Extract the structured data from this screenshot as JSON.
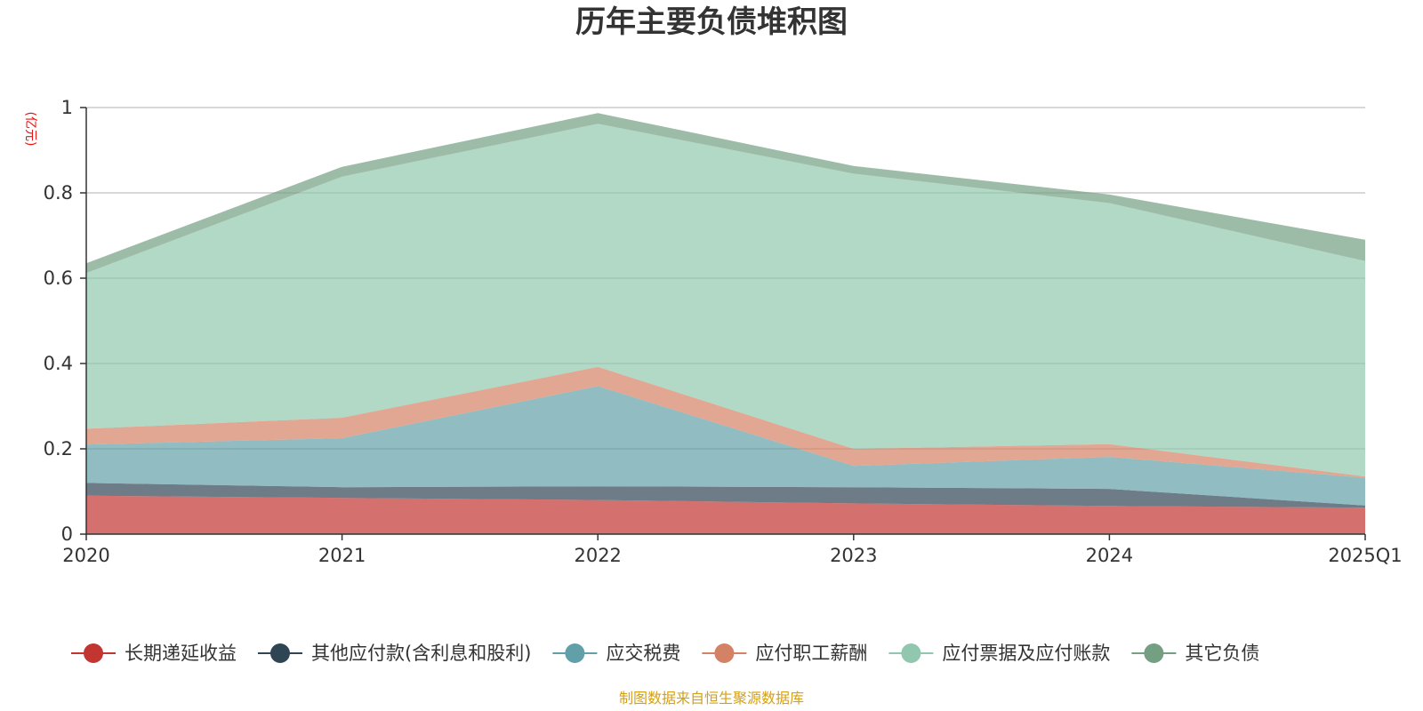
{
  "chart_data": {
    "type": "area",
    "title": "历年主要负债堆积图",
    "unit_label": "(亿元)",
    "categories": [
      "2020",
      "2021",
      "2022",
      "2023",
      "2024",
      "2025Q1"
    ],
    "ylim": [
      0,
      1
    ],
    "yticks": [
      "0",
      "0.2",
      "0.4",
      "0.6",
      "0.8",
      "1"
    ],
    "grid": true,
    "legend_position": "bottom",
    "stacked": true,
    "series": [
      {
        "name": "长期递延收益",
        "color": "#c23531",
        "values": [
          0.09,
          0.085,
          0.08,
          0.072,
          0.066,
          0.062
        ]
      },
      {
        "name": "其他应付款(含利息和股利)",
        "color": "#2f4554",
        "values": [
          0.03,
          0.025,
          0.032,
          0.038,
          0.04,
          0.005
        ]
      },
      {
        "name": "应交税费",
        "color": "#61a0a8",
        "values": [
          0.09,
          0.115,
          0.235,
          0.05,
          0.075,
          0.065
        ]
      },
      {
        "name": "应付职工薪酬",
        "color": "#d48265",
        "values": [
          0.037,
          0.048,
          0.045,
          0.04,
          0.03,
          0.003
        ]
      },
      {
        "name": "应付票据及应付账款",
        "color": "#91c7ae",
        "values": [
          0.365,
          0.565,
          0.57,
          0.645,
          0.565,
          0.505
        ]
      },
      {
        "name": "其它负债",
        "color": "#749f83",
        "values": [
          0.023,
          0.023,
          0.025,
          0.018,
          0.02,
          0.05
        ]
      }
    ],
    "source_note": "制图数据来自恒生聚源数据库"
  }
}
